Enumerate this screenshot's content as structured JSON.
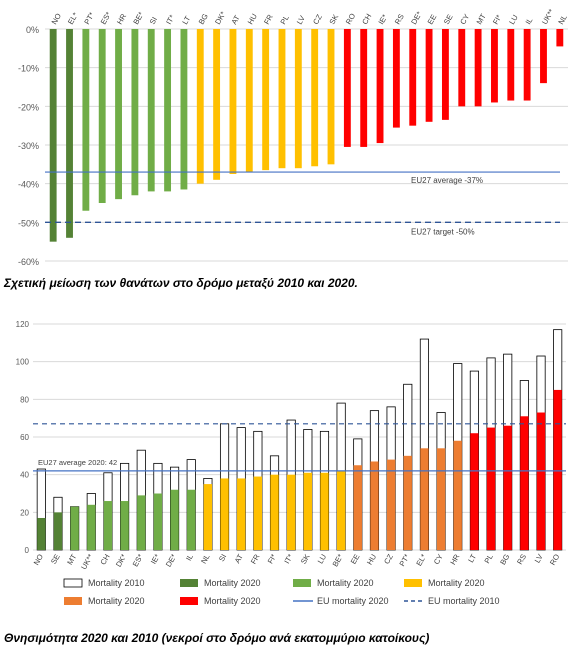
{
  "captions": {
    "chart1": "Σχετική μείωση των θανάτων στο δρόμο μεταξύ 2010 και 2020.",
    "chart2": "Θνησιμότητα 2020 και 2010 (νεκροί στο δρόμο ανά εκατομμύριο κατοίκους)"
  },
  "colors": {
    "dark_green": "#548235",
    "light_green": "#70ad47",
    "yellow": "#ffc000",
    "orange": "#ed7d31",
    "red": "#ff0000",
    "avg_line": "#4472c4",
    "target_line": "#2f5597",
    "grid": "#d9d9d9"
  },
  "chart_data": [
    {
      "type": "bar",
      "categories": [
        "NO",
        "EL*",
        "PT*",
        "ES*",
        "HR",
        "BE*",
        "SI",
        "IT*",
        "LT",
        "BG",
        "DK*",
        "AT",
        "HU",
        "FR",
        "PL",
        "LV",
        "CZ",
        "SK",
        "RO",
        "CH",
        "IE*",
        "RS",
        "DE*",
        "EE",
        "SE",
        "CY",
        "MT",
        "FI*",
        "LU",
        "IL",
        "UK**",
        "NL"
      ],
      "values": [
        -55,
        -54,
        -47,
        -45,
        -44,
        -43,
        -42,
        -42,
        -41.5,
        -40,
        -39,
        -37.5,
        -37,
        -36.5,
        -36,
        -36,
        -35.5,
        -35,
        -30.5,
        -30.5,
        -29.5,
        -25.5,
        -25,
        -24,
        -23.5,
        -20,
        -20,
        -19,
        -18.5,
        -18.5,
        -14,
        -4.5
      ],
      "groups": [
        "dark_green",
        "dark_green",
        "light_green",
        "light_green",
        "light_green",
        "light_green",
        "light_green",
        "light_green",
        "light_green",
        "yellow",
        "yellow",
        "yellow",
        "yellow",
        "yellow",
        "yellow",
        "yellow",
        "yellow",
        "yellow",
        "red",
        "red",
        "red",
        "red",
        "red",
        "red",
        "red",
        "red",
        "red",
        "red",
        "red",
        "red",
        "red",
        "red"
      ],
      "ylim": [
        -60,
        0
      ],
      "yticks": [
        "0%",
        "-10%",
        "-20%",
        "-30%",
        "-40%",
        "-50%",
        "-60%"
      ],
      "reference_lines": [
        {
          "label": "EU27 average -37%",
          "value": -37,
          "style": "solid"
        },
        {
          "label": "EU27 target -50%",
          "value": -50,
          "style": "dashed"
        }
      ],
      "grid": true,
      "xaxis_position": "top"
    },
    {
      "type": "bar",
      "categories": [
        "NO",
        "SE",
        "MT",
        "UK**",
        "CH",
        "DK*",
        "ES*",
        "IE*",
        "DE*",
        "IL",
        "NL",
        "SI",
        "AT",
        "FR",
        "FI*",
        "IT*",
        "SK",
        "LU",
        "BE*",
        "EE",
        "HU",
        "CZ",
        "PT*",
        "EL*",
        "CY",
        "HR",
        "LT",
        "PL",
        "BG",
        "RS",
        "LV",
        "RO"
      ],
      "series": [
        {
          "name": "Mortality 2020",
          "values": [
            17,
            20,
            23,
            24,
            26,
            26,
            29,
            30,
            32,
            32,
            35,
            38,
            38,
            39,
            40,
            40,
            41,
            41,
            42,
            45,
            47,
            48,
            50,
            54,
            54,
            58,
            62,
            65,
            66,
            71,
            73,
            85
          ]
        },
        {
          "name": "Mortality 2010",
          "values": [
            43,
            28,
            23,
            30,
            41,
            46,
            53,
            46,
            44,
            48,
            38,
            67,
            65,
            63,
            50,
            69,
            64,
            63,
            78,
            59,
            74,
            76,
            88,
            112,
            73,
            99,
            95,
            102,
            104,
            90,
            103,
            117
          ]
        }
      ],
      "groups": [
        "dark_green",
        "dark_green",
        "light_green",
        "light_green",
        "light_green",
        "light_green",
        "light_green",
        "light_green",
        "light_green",
        "light_green",
        "yellow",
        "yellow",
        "yellow",
        "yellow",
        "yellow",
        "yellow",
        "yellow",
        "yellow",
        "yellow",
        "orange",
        "orange",
        "orange",
        "orange",
        "orange",
        "orange",
        "orange",
        "red",
        "red",
        "red",
        "red",
        "red",
        "red"
      ],
      "ylim": [
        0,
        120
      ],
      "yticks": [
        0,
        20,
        40,
        60,
        80,
        100,
        120
      ],
      "reference_lines": [
        {
          "series": "EU mortality 2020",
          "value": 42,
          "style": "solid",
          "label": "EU27 average 2020: 42"
        },
        {
          "series": "EU mortality 2010",
          "value": 67,
          "style": "dashed"
        }
      ],
      "legend": {
        "placement": "bottom",
        "items": [
          {
            "label": "Mortality 2010",
            "kind": "box",
            "color": "#ffffff"
          },
          {
            "label": "Mortality 2020",
            "kind": "box",
            "color": "#548235"
          },
          {
            "label": "Mortality 2020",
            "kind": "box",
            "color": "#70ad47"
          },
          {
            "label": "Mortality 2020",
            "kind": "box",
            "color": "#ffc000"
          },
          {
            "label": "Mortality 2020",
            "kind": "box",
            "color": "#ed7d31"
          },
          {
            "label": "Mortality 2020",
            "kind": "box",
            "color": "#ff0000"
          },
          {
            "label": "EU mortality 2020",
            "kind": "line",
            "color": "#4472c4"
          },
          {
            "label": "EU mortality 2010",
            "kind": "dash",
            "color": "#2f5597"
          }
        ]
      },
      "grid": true
    }
  ]
}
